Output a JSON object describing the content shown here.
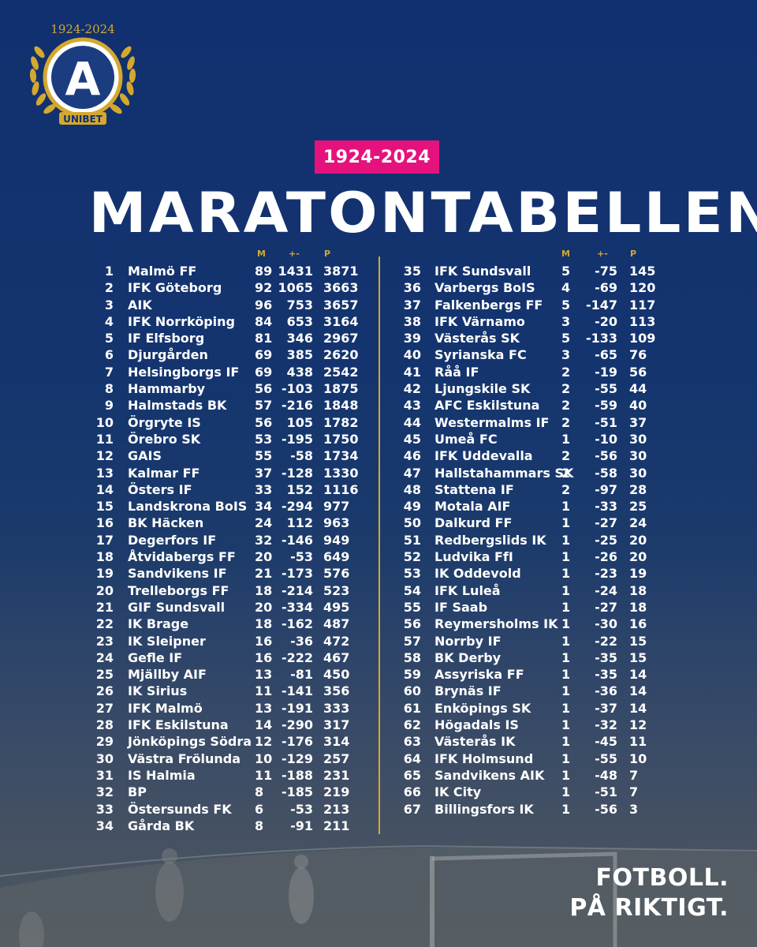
{
  "brand": {
    "logo_years": "1924-2024",
    "logo_sponsor": "UNIBET",
    "logo_letter": "A",
    "gold": "#d4a82f",
    "pink": "#e5127d",
    "navy": "#11306f"
  },
  "header": {
    "badge": "1924-2024",
    "title": "MARATONTABELLEN"
  },
  "columns": {
    "m": "M",
    "gd": "+-",
    "p": "P"
  },
  "left_table": [
    {
      "rank": "1",
      "team": "Malmö FF",
      "m": "89",
      "gd": "1431",
      "p": "3871"
    },
    {
      "rank": "2",
      "team": "IFK Göteborg",
      "m": "92",
      "gd": "1065",
      "p": "3663"
    },
    {
      "rank": "3",
      "team": "AIK",
      "m": "96",
      "gd": "753",
      "p": "3657"
    },
    {
      "rank": "4",
      "team": "IFK Norrköping",
      "m": "84",
      "gd": "653",
      "p": "3164"
    },
    {
      "rank": "5",
      "team": "IF Elfsborg",
      "m": "81",
      "gd": "346",
      "p": "2967"
    },
    {
      "rank": "6",
      "team": "Djurgården",
      "m": "69",
      "gd": "385",
      "p": "2620"
    },
    {
      "rank": "7",
      "team": "Helsingborgs IF",
      "m": "69",
      "gd": "438",
      "p": "2542"
    },
    {
      "rank": "8",
      "team": "Hammarby",
      "m": "56",
      "gd": "-103",
      "p": "1875"
    },
    {
      "rank": "9",
      "team": "Halmstads BK",
      "m": "57",
      "gd": "-216",
      "p": "1848"
    },
    {
      "rank": "10",
      "team": "Örgryte IS",
      "m": "56",
      "gd": "105",
      "p": "1782"
    },
    {
      "rank": "11",
      "team": "Örebro SK",
      "m": "53",
      "gd": "-195",
      "p": "1750"
    },
    {
      "rank": "12",
      "team": "GAIS",
      "m": "55",
      "gd": "-58",
      "p": "1734"
    },
    {
      "rank": "13",
      "team": "Kalmar FF",
      "m": "37",
      "gd": "-128",
      "p": "1330"
    },
    {
      "rank": "14",
      "team": "Östers IF",
      "m": "33",
      "gd": "152",
      "p": "1116"
    },
    {
      "rank": "15",
      "team": "Landskrona BoIS",
      "m": "34",
      "gd": "-294",
      "p": "977"
    },
    {
      "rank": "16",
      "team": "BK Häcken",
      "m": "24",
      "gd": "112",
      "p": "963"
    },
    {
      "rank": "17",
      "team": "Degerfors IF",
      "m": "32",
      "gd": "-146",
      "p": "949"
    },
    {
      "rank": "18",
      "team": "Åtvidabergs FF",
      "m": "20",
      "gd": "-53",
      "p": "649"
    },
    {
      "rank": "19",
      "team": "Sandvikens IF",
      "m": "21",
      "gd": "-173",
      "p": "576"
    },
    {
      "rank": "20",
      "team": "Trelleborgs FF",
      "m": "18",
      "gd": "-214",
      "p": "523"
    },
    {
      "rank": "21",
      "team": "GIF Sundsvall",
      "m": "20",
      "gd": "-334",
      "p": "495"
    },
    {
      "rank": "22",
      "team": "IK Brage",
      "m": "18",
      "gd": "-162",
      "p": "487"
    },
    {
      "rank": "23",
      "team": "IK Sleipner",
      "m": "16",
      "gd": "-36",
      "p": "472"
    },
    {
      "rank": "24",
      "team": "Gefle IF",
      "m": "16",
      "gd": "-222",
      "p": "467"
    },
    {
      "rank": "25",
      "team": "Mjällby AIF",
      "m": "13",
      "gd": "-81",
      "p": "450"
    },
    {
      "rank": "26",
      "team": "IK Sirius",
      "m": "11",
      "gd": "-141",
      "p": "356"
    },
    {
      "rank": "27",
      "team": "IFK Malmö",
      "m": "13",
      "gd": "-191",
      "p": "333"
    },
    {
      "rank": "28",
      "team": "IFK Eskilstuna",
      "m": "14",
      "gd": "-290",
      "p": "317"
    },
    {
      "rank": "29",
      "team": "Jönköpings Södra",
      "m": "12",
      "gd": "-176",
      "p": "314"
    },
    {
      "rank": "30",
      "team": "Västra Frölunda",
      "m": "10",
      "gd": "-129",
      "p": "257"
    },
    {
      "rank": "31",
      "team": "IS Halmia",
      "m": "11",
      "gd": "-188",
      "p": "231"
    },
    {
      "rank": "32",
      "team": "BP",
      "m": "8",
      "gd": "-185",
      "p": "219"
    },
    {
      "rank": "33",
      "team": "Östersunds FK",
      "m": "6",
      "gd": "-53",
      "p": "213"
    },
    {
      "rank": "34",
      "team": "Gårda BK",
      "m": "8",
      "gd": "-91",
      "p": "211"
    }
  ],
  "right_table": [
    {
      "rank": "35",
      "team": "IFK Sundsvall",
      "m": "5",
      "gd": "-75",
      "p": "145"
    },
    {
      "rank": "36",
      "team": "Varbergs BoIS",
      "m": "4",
      "gd": "-69",
      "p": "120"
    },
    {
      "rank": "37",
      "team": "Falkenbergs FF",
      "m": "5",
      "gd": "-147",
      "p": "117"
    },
    {
      "rank": "38",
      "team": "IFK Värnamo",
      "m": "3",
      "gd": "-20",
      "p": "113"
    },
    {
      "rank": "39",
      "team": "Västerås SK",
      "m": "5",
      "gd": "-133",
      "p": "109"
    },
    {
      "rank": "40",
      "team": "Syrianska FC",
      "m": "3",
      "gd": "-65",
      "p": "76"
    },
    {
      "rank": "41",
      "team": "Råå IF",
      "m": "2",
      "gd": "-19",
      "p": "56"
    },
    {
      "rank": "42",
      "team": "Ljungskile SK",
      "m": "2",
      "gd": "-55",
      "p": "44"
    },
    {
      "rank": "43",
      "team": "AFC Eskilstuna",
      "m": "2",
      "gd": "-59",
      "p": "40"
    },
    {
      "rank": "44",
      "team": "Westermalms IF",
      "m": "2",
      "gd": "-51",
      "p": "37"
    },
    {
      "rank": "45",
      "team": "Umeå FC",
      "m": "1",
      "gd": "-10",
      "p": "30"
    },
    {
      "rank": "46",
      "team": "IFK Uddevalla",
      "m": "2",
      "gd": "-56",
      "p": "30"
    },
    {
      "rank": "47",
      "team": "Hallstahammars SK",
      "m": "2",
      "gd": "-58",
      "p": "30"
    },
    {
      "rank": "48",
      "team": "Stattena IF",
      "m": "2",
      "gd": "-97",
      "p": "28"
    },
    {
      "rank": "49",
      "team": "Motala AIF",
      "m": "1",
      "gd": "-33",
      "p": "25"
    },
    {
      "rank": "50",
      "team": "Dalkurd FF",
      "m": "1",
      "gd": "-27",
      "p": "24"
    },
    {
      "rank": "51",
      "team": "Redbergslids IK",
      "m": "1",
      "gd": "-25",
      "p": "20"
    },
    {
      "rank": "52",
      "team": "Ludvika FfI",
      "m": "1",
      "gd": "-26",
      "p": "20"
    },
    {
      "rank": "53",
      "team": "IK Oddevold",
      "m": "1",
      "gd": "-23",
      "p": "19"
    },
    {
      "rank": "54",
      "team": "IFK Luleå",
      "m": "1",
      "gd": "-24",
      "p": "18"
    },
    {
      "rank": "55",
      "team": "IF Saab",
      "m": "1",
      "gd": "-27",
      "p": "18"
    },
    {
      "rank": "56",
      "team": "Reymersholms IK",
      "m": "1",
      "gd": "-30",
      "p": "16"
    },
    {
      "rank": "57",
      "team": "Norrby IF",
      "m": "1",
      "gd": "-22",
      "p": "15"
    },
    {
      "rank": "58",
      "team": "BK Derby",
      "m": "1",
      "gd": "-35",
      "p": "15"
    },
    {
      "rank": "59",
      "team": "Assyriska FF",
      "m": "1",
      "gd": "-35",
      "p": "14"
    },
    {
      "rank": "60",
      "team": "Brynäs IF",
      "m": "1",
      "gd": "-36",
      "p": "14"
    },
    {
      "rank": "61",
      "team": "Enköpings SK",
      "m": "1",
      "gd": "-37",
      "p": "14"
    },
    {
      "rank": "62",
      "team": "Högadals IS",
      "m": "1",
      "gd": "-32",
      "p": "12"
    },
    {
      "rank": "63",
      "team": "Västerås IK",
      "m": "1",
      "gd": "-45",
      "p": "11"
    },
    {
      "rank": "64",
      "team": "IFK Holmsund",
      "m": "1",
      "gd": "-55",
      "p": "10"
    },
    {
      "rank": "65",
      "team": "Sandvikens AIK",
      "m": "1",
      "gd": "-48",
      "p": "7"
    },
    {
      "rank": "66",
      "team": "IK City",
      "m": "1",
      "gd": "-51",
      "p": "7"
    },
    {
      "rank": "67",
      "team": "Billingsfors IK",
      "m": "1",
      "gd": "-56",
      "p": "3"
    }
  ],
  "slogan": {
    "line1": "FOTBOLL.",
    "line2": "PÅ RIKTIGT."
  }
}
